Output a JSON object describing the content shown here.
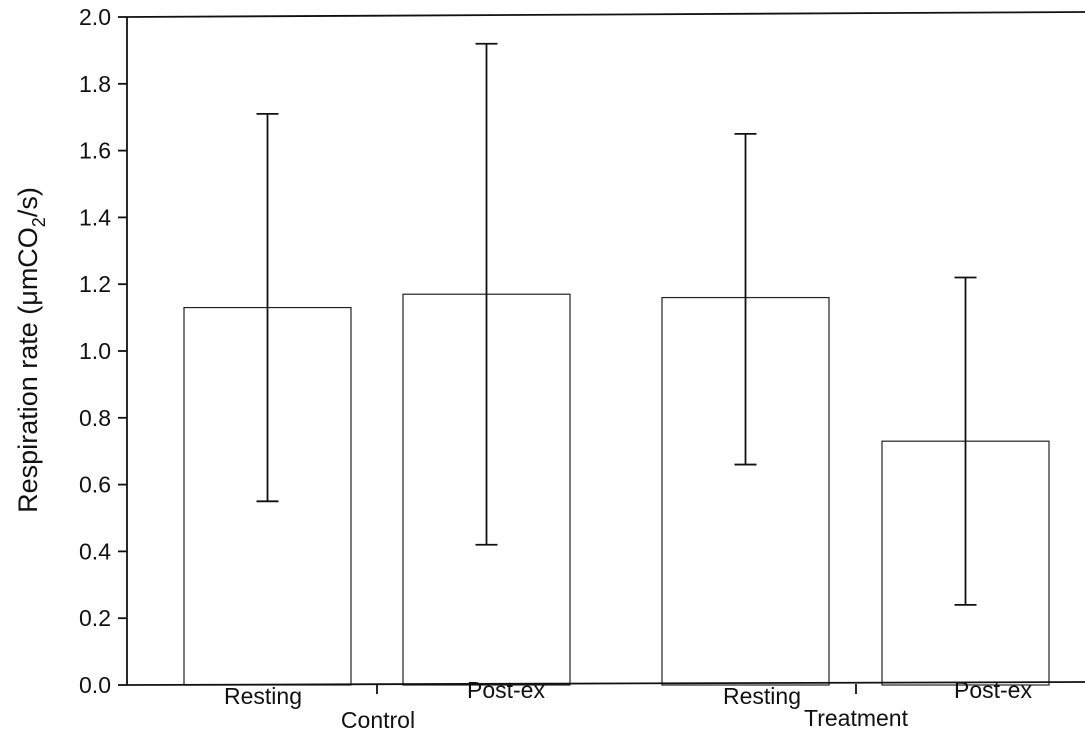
{
  "chart_data": {
    "type": "bar",
    "title": "",
    "xlabel": "",
    "ylabel": {
      "prefix": "Respiration rate (μmCO",
      "subscript": "2",
      "suffix": "/s)"
    },
    "ylim": [
      0,
      2.0
    ],
    "yticks": [
      "0.0",
      "0.2",
      "0.4",
      "0.6",
      "0.8",
      "1.0",
      "1.2",
      "1.4",
      "1.6",
      "1.8",
      "2.0"
    ],
    "groups": [
      "Control",
      "Treatment"
    ],
    "categories": [
      "Resting",
      "Post-ex",
      "Resting",
      "Post-ex"
    ],
    "values": [
      1.13,
      1.17,
      1.16,
      0.73
    ],
    "error_low": [
      0.55,
      0.42,
      0.66,
      0.24
    ],
    "error_high": [
      1.71,
      1.92,
      1.65,
      1.22
    ],
    "grid": false,
    "legend": "none"
  }
}
